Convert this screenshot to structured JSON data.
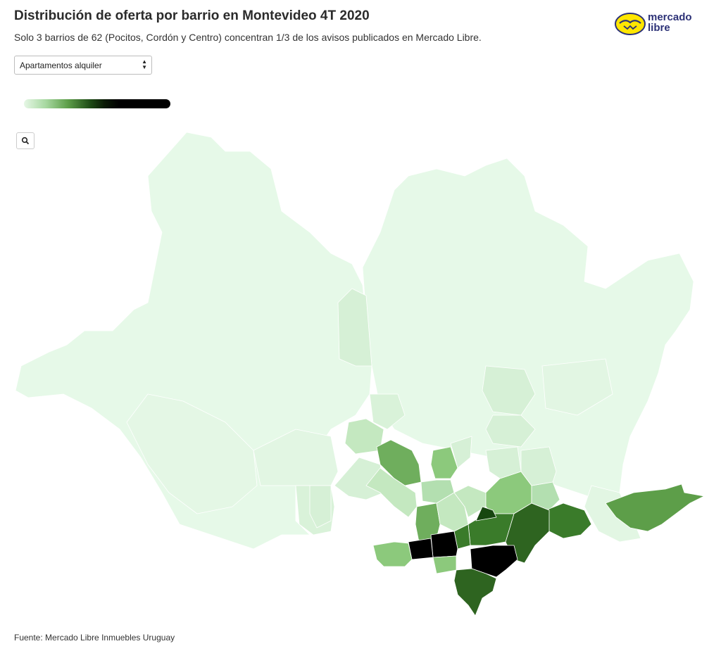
{
  "header": {
    "title": "Distribución de oferta por barrio en Montevideo 4T 2020",
    "subtitle": "Solo 3 barrios de 62 (Pocitos, Cordón y Centro) concentran 1/3 de los avisos publicados en Mercado Libre."
  },
  "logo": {
    "line1": "mercado",
    "line2": "libre"
  },
  "filter": {
    "selected": "Apartamentos alquiler"
  },
  "footer": {
    "source": "Fuente: Mercado Libre Inmuebles Uruguay"
  },
  "colors": {
    "very_light": "#e6f9e8",
    "light": "#d6f0d6",
    "light_mid": "#b3dfb0",
    "mid": "#8cc97c",
    "mid_dark": "#5d9e49",
    "dark": "#2e6420",
    "darker": "#174710",
    "black": "#000000"
  },
  "icons": {
    "zoom": "search-icon",
    "select_arrows": "sort-arrows-icon",
    "logo": "handshake-logo-icon"
  }
}
